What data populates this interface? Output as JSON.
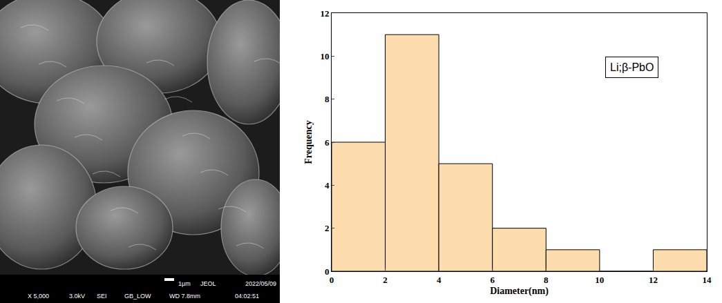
{
  "chart_data": {
    "type": "histogram",
    "x_label": "Diameter(nm)",
    "y_label": "Frequency",
    "annotations": [
      "Li;β-PbO"
    ],
    "bins": [
      0,
      2,
      4,
      6,
      8,
      10,
      12,
      14
    ],
    "values": [
      6,
      11,
      5,
      2,
      1,
      0,
      1
    ],
    "color": "#fddcad",
    "xlim": [
      0,
      14
    ],
    "xticks": [
      0,
      2,
      4,
      6,
      8,
      10,
      12,
      14
    ],
    "ylim": [
      0,
      12
    ],
    "yticks": [
      0,
      2,
      4,
      6,
      8,
      10,
      12
    ],
    "grid": false
  },
  "micrograph": {
    "scale_bar": "1μm",
    "maker": "JEOL",
    "date": "2022/05/09",
    "info": [
      "X 5,000",
      "3.0kV",
      "SEI",
      "GB_LOW",
      "WD 7.8mm",
      "04:02:51"
    ]
  }
}
